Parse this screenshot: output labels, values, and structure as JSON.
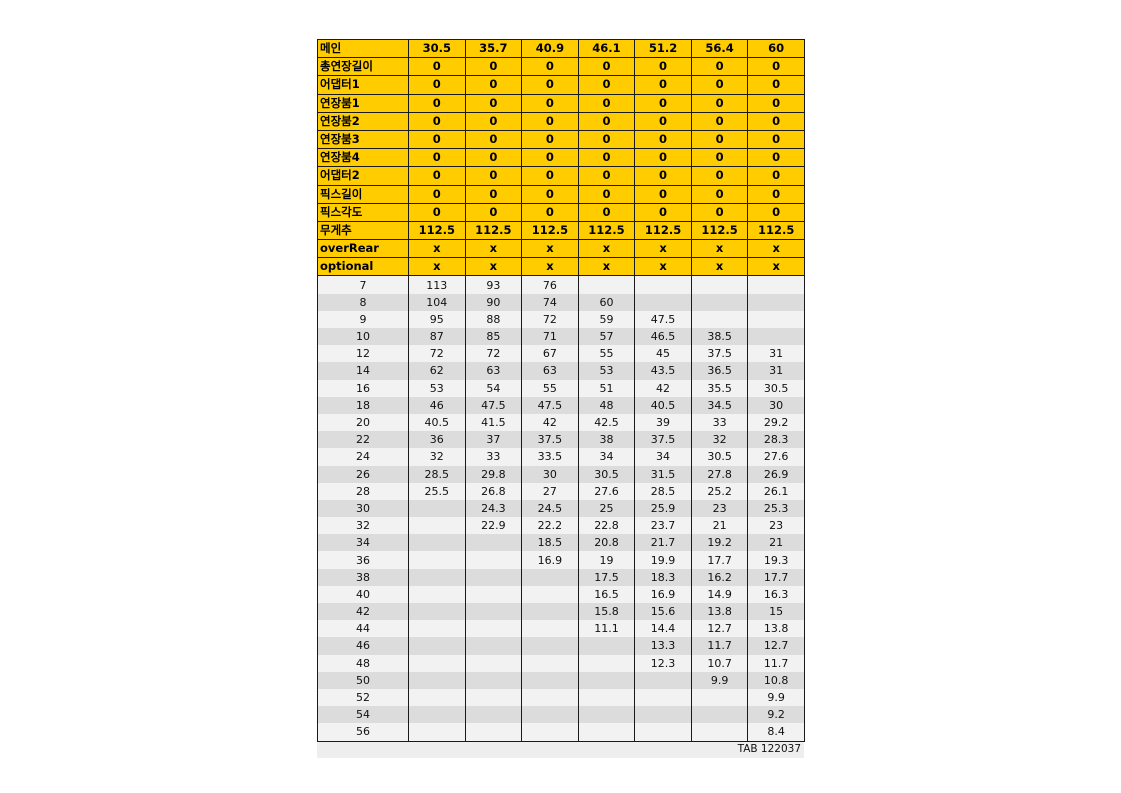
{
  "header_rows": [
    {
      "label": "메인",
      "values": [
        "30.5",
        "35.7",
        "40.9",
        "46.1",
        "51.2",
        "56.4",
        "60"
      ]
    },
    {
      "label": "총연장길이",
      "values": [
        "0",
        "0",
        "0",
        "0",
        "0",
        "0",
        "0"
      ]
    },
    {
      "label": "어댑터1",
      "values": [
        "0",
        "0",
        "0",
        "0",
        "0",
        "0",
        "0"
      ]
    },
    {
      "label": "연장붐1",
      "values": [
        "0",
        "0",
        "0",
        "0",
        "0",
        "0",
        "0"
      ]
    },
    {
      "label": "연장붐2",
      "values": [
        "0",
        "0",
        "0",
        "0",
        "0",
        "0",
        "0"
      ]
    },
    {
      "label": "연장붐3",
      "values": [
        "0",
        "0",
        "0",
        "0",
        "0",
        "0",
        "0"
      ]
    },
    {
      "label": "연장붐4",
      "values": [
        "0",
        "0",
        "0",
        "0",
        "0",
        "0",
        "0"
      ]
    },
    {
      "label": "어댑터2",
      "values": [
        "0",
        "0",
        "0",
        "0",
        "0",
        "0",
        "0"
      ]
    },
    {
      "label": "픽스길이",
      "values": [
        "0",
        "0",
        "0",
        "0",
        "0",
        "0",
        "0"
      ]
    },
    {
      "label": "픽스각도",
      "values": [
        "0",
        "0",
        "0",
        "0",
        "0",
        "0",
        "0"
      ]
    },
    {
      "label": "무게추",
      "values": [
        "112.5",
        "112.5",
        "112.5",
        "112.5",
        "112.5",
        "112.5",
        "112.5"
      ]
    },
    {
      "label": "overRear",
      "values": [
        "x",
        "x",
        "x",
        "x",
        "x",
        "x",
        "x"
      ]
    },
    {
      "label": "optional",
      "values": [
        "x",
        "x",
        "x",
        "x",
        "x",
        "x",
        "x"
      ]
    }
  ],
  "data_rows": [
    {
      "radius": "7",
      "values": [
        "113",
        "93",
        "76",
        "",
        "",
        "",
        ""
      ]
    },
    {
      "radius": "8",
      "values": [
        "104",
        "90",
        "74",
        "60",
        "",
        "",
        ""
      ]
    },
    {
      "radius": "9",
      "values": [
        "95",
        "88",
        "72",
        "59",
        "47.5",
        "",
        ""
      ]
    },
    {
      "radius": "10",
      "values": [
        "87",
        "85",
        "71",
        "57",
        "46.5",
        "38.5",
        ""
      ]
    },
    {
      "radius": "12",
      "values": [
        "72",
        "72",
        "67",
        "55",
        "45",
        "37.5",
        "31"
      ]
    },
    {
      "radius": "14",
      "values": [
        "62",
        "63",
        "63",
        "53",
        "43.5",
        "36.5",
        "31"
      ]
    },
    {
      "radius": "16",
      "values": [
        "53",
        "54",
        "55",
        "51",
        "42",
        "35.5",
        "30.5"
      ]
    },
    {
      "radius": "18",
      "values": [
        "46",
        "47.5",
        "47.5",
        "48",
        "40.5",
        "34.5",
        "30"
      ]
    },
    {
      "radius": "20",
      "values": [
        "40.5",
        "41.5",
        "42",
        "42.5",
        "39",
        "33",
        "29.2"
      ]
    },
    {
      "radius": "22",
      "values": [
        "36",
        "37",
        "37.5",
        "38",
        "37.5",
        "32",
        "28.3"
      ]
    },
    {
      "radius": "24",
      "values": [
        "32",
        "33",
        "33.5",
        "34",
        "34",
        "30.5",
        "27.6"
      ]
    },
    {
      "radius": "26",
      "values": [
        "28.5",
        "29.8",
        "30",
        "30.5",
        "31.5",
        "27.8",
        "26.9"
      ]
    },
    {
      "radius": "28",
      "values": [
        "25.5",
        "26.8",
        "27",
        "27.6",
        "28.5",
        "25.2",
        "26.1"
      ]
    },
    {
      "radius": "30",
      "values": [
        "",
        "24.3",
        "24.5",
        "25",
        "25.9",
        "23",
        "25.3"
      ]
    },
    {
      "radius": "32",
      "values": [
        "",
        "22.9",
        "22.2",
        "22.8",
        "23.7",
        "21",
        "23"
      ]
    },
    {
      "radius": "34",
      "values": [
        "",
        "",
        "18.5",
        "20.8",
        "21.7",
        "19.2",
        "21"
      ]
    },
    {
      "radius": "36",
      "values": [
        "",
        "",
        "16.9",
        "19",
        "19.9",
        "17.7",
        "19.3"
      ]
    },
    {
      "radius": "38",
      "values": [
        "",
        "",
        "",
        "17.5",
        "18.3",
        "16.2",
        "17.7"
      ]
    },
    {
      "radius": "40",
      "values": [
        "",
        "",
        "",
        "16.5",
        "16.9",
        "14.9",
        "16.3"
      ]
    },
    {
      "radius": "42",
      "values": [
        "",
        "",
        "",
        "15.8",
        "15.6",
        "13.8",
        "15"
      ]
    },
    {
      "radius": "44",
      "values": [
        "",
        "",
        "",
        "11.1",
        "14.4",
        "12.7",
        "13.8"
      ]
    },
    {
      "radius": "46",
      "values": [
        "",
        "",
        "",
        "",
        "13.3",
        "11.7",
        "12.7"
      ]
    },
    {
      "radius": "48",
      "values": [
        "",
        "",
        "",
        "",
        "12.3",
        "10.7",
        "11.7"
      ]
    },
    {
      "radius": "50",
      "values": [
        "",
        "",
        "",
        "",
        "",
        "9.9",
        "10.8"
      ]
    },
    {
      "radius": "52",
      "values": [
        "",
        "",
        "",
        "",
        "",
        "",
        "9.9"
      ]
    },
    {
      "radius": "54",
      "values": [
        "",
        "",
        "",
        "",
        "",
        "",
        "9.2"
      ]
    },
    {
      "radius": "56",
      "values": [
        "",
        "",
        "",
        "",
        "",
        "",
        "8.4"
      ]
    }
  ],
  "footer": {
    "text": "TAB 122037"
  }
}
